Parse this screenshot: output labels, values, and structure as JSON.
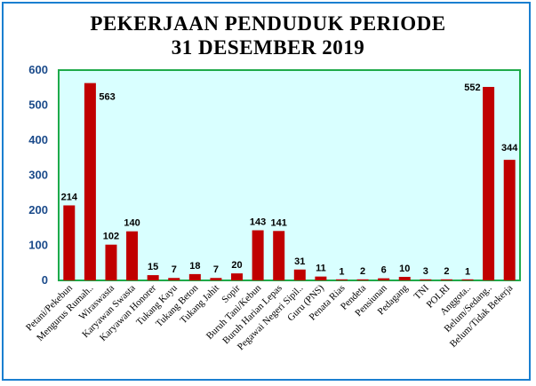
{
  "chart_data": {
    "type": "bar",
    "title_line1": "PEKERJAAN PENDUDUK PERIODE",
    "title_line2": "31 DESEMBER 2019",
    "xlabel": "",
    "ylabel": "",
    "ylim": [
      0,
      600
    ],
    "yticks": [
      0,
      100,
      200,
      300,
      400,
      500,
      600
    ],
    "grid": false,
    "legend": "none",
    "bar_color": "#c00000",
    "plot_background": "#d9ffff",
    "plot_border_color": "#1faa4a",
    "frame_border_color": "#1a7fd0",
    "categories": [
      "Petani/Pekebun",
      "Mengurus Rumah..",
      "Wiraswasta",
      "Karyawan Swasta",
      "Karyawan Honorer",
      "Tukang Kayu",
      "Tukang Beton",
      "Tukang Jahit",
      "Sopir",
      "Buruh Tani/Kebun",
      "Buruh Harian Lepas",
      "Pegawai Negeri Sipil..",
      "Guru (PNS)",
      "Penata Rias",
      "Pendeta",
      "Pensiunan",
      "Pedagang",
      "TNI",
      "POLRI",
      "Anggota..",
      "Belum/Sedang..",
      "Belum/Tidak Bekerja"
    ],
    "values": [
      214,
      563,
      102,
      140,
      15,
      7,
      18,
      7,
      20,
      143,
      141,
      31,
      11,
      1,
      2,
      6,
      10,
      3,
      2,
      1,
      552,
      344
    ],
    "labels": [
      "214",
      "563",
      "102",
      "140",
      "15",
      "7",
      "18",
      "7",
      "20",
      "143",
      "141",
      "31",
      "11",
      "1",
      "2",
      "6",
      "10",
      "3",
      "2",
      "1",
      "552",
      "344"
    ]
  }
}
